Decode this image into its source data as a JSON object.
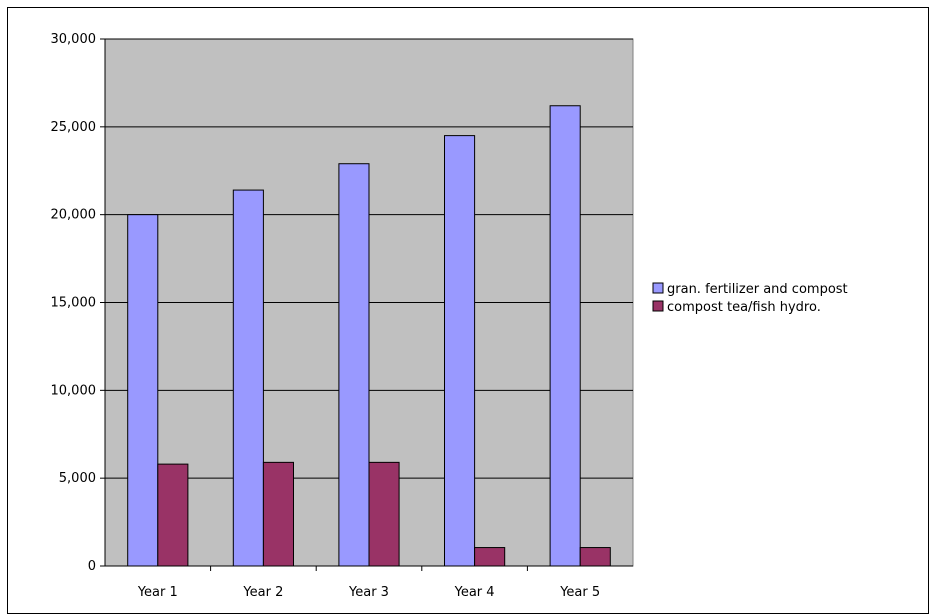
{
  "chart_data": {
    "type": "bar",
    "title": "",
    "xlabel": "",
    "ylabel": "",
    "categories": [
      "Year 1",
      "Year 2",
      "Year 3",
      "Year 4",
      "Year 5"
    ],
    "series": [
      {
        "name": "gran. fertilizer and compost",
        "color": "#9999ff",
        "values": [
          20000,
          21400,
          22900,
          24500,
          26200
        ]
      },
      {
        "name": "compost tea/fish hydro.",
        "color": "#993366",
        "values": [
          5800,
          5900,
          5900,
          1050,
          1050
        ]
      }
    ],
    "ylim": [
      0,
      30000
    ],
    "yticks": [
      0,
      5000,
      10000,
      15000,
      20000,
      25000,
      30000
    ],
    "ytick_labels": [
      "0",
      "5,000",
      "10,000",
      "15,000",
      "20,000",
      "25,000",
      "30,000"
    ],
    "grid": true,
    "plot_background": "#c0c0c0",
    "legend_position": "right"
  }
}
